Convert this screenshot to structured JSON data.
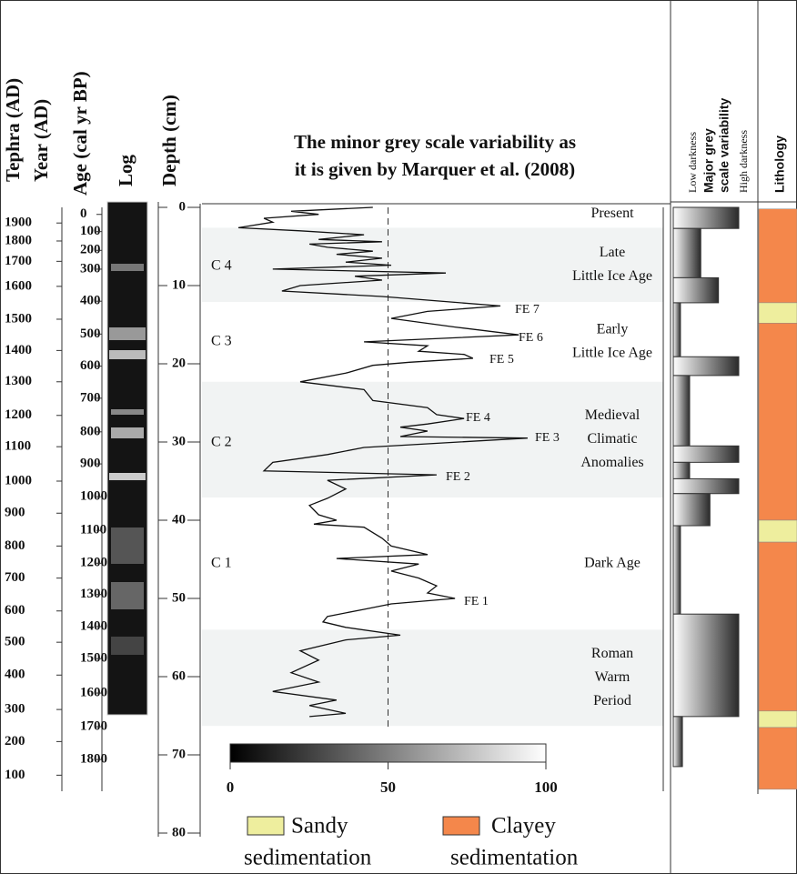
{
  "chart_data": {
    "type": "line",
    "title": [
      "The minor grey scale variability as",
      "it is given by Marquer et al. (2008)"
    ],
    "y_label": "Depth (cm)",
    "ylim": [
      0,
      80
    ],
    "yticks": [
      0,
      10,
      20,
      30,
      40,
      50,
      60,
      70,
      80
    ],
    "xlim": [
      0,
      100
    ],
    "xticks": [
      0,
      50,
      100
    ],
    "colorbar": [
      "#000000",
      "#ffffff"
    ],
    "reference_line": 50,
    "series": [
      {
        "color": "#111111",
        "x": [
          45.2,
          19.3,
          28.0,
          10.7,
          13.5,
          2.6,
          22.2,
          42.4,
          28.0,
          48.1,
          25.1,
          30.8,
          45.2,
          33.7,
          48.1,
          36.6,
          51.0,
          13.5,
          68.3,
          39.5,
          48.1,
          22.2,
          16.4,
          48.1,
          85.6,
          62.5,
          51.0,
          71.2,
          91.4,
          42.4,
          62.5,
          59.7,
          74.1,
          76.9,
          56.8,
          45.2,
          36.6,
          22.2,
          42.4,
          45.2,
          62.5,
          65.4,
          74.1,
          62.5,
          53.9,
          62.5,
          53.9,
          94.2,
          42.4,
          30.8,
          13.5,
          10.7,
          65.4,
          30.8,
          36.6,
          30.8,
          25.1,
          28.0,
          33.7,
          26.5,
          42.4,
          48.1,
          51.0,
          62.5,
          33.7,
          59.7,
          51.0,
          59.7,
          65.4,
          62.5,
          71.2,
          51.0,
          42.4,
          30.8,
          29.4,
          36.6,
          53.9,
          36.6,
          22.2,
          28.0,
          19.3,
          28.0,
          13.5,
          33.7,
          25.1,
          36.6,
          25.1
        ],
        "values": [
          0,
          0.5,
          0.9,
          1.4,
          1.9,
          2.6,
          3.0,
          3.5,
          4.1,
          4.4,
          4.7,
          5.1,
          5.6,
          6.0,
          6.5,
          7.0,
          7.4,
          7.9,
          8.4,
          8.8,
          9.3,
          10.0,
          10.7,
          11.4,
          12.6,
          13.3,
          14.2,
          15.3,
          16.3,
          17.2,
          17.7,
          18.4,
          18.8,
          19.3,
          19.8,
          20.2,
          21.2,
          22.3,
          23.3,
          24.7,
          25.6,
          26.5,
          27.0,
          27.7,
          28.1,
          28.6,
          29.3,
          29.5,
          30.7,
          31.6,
          32.6,
          33.7,
          34.2,
          34.9,
          36.0,
          37.2,
          38.1,
          39.3,
          40.0,
          40.5,
          40.9,
          42.3,
          43.3,
          44.4,
          44.9,
          45.6,
          46.5,
          47.4,
          48.4,
          49.3,
          50.0,
          50.7,
          51.4,
          52.3,
          53.0,
          53.7,
          54.7,
          55.3,
          56.7,
          57.9,
          59.5,
          60.7,
          61.9,
          63.0,
          63.7,
          64.7,
          65.1
        ]
      }
    ],
    "periods": [
      {
        "lines": [
          "Present"
        ],
        "top": 0,
        "bottom": 2.6,
        "shaded": false
      },
      {
        "lines": [
          "Late",
          "Little Ice Age"
        ],
        "top": 2.6,
        "bottom": 12.1,
        "shaded": true
      },
      {
        "lines": [
          "Early",
          "Little Ice Age"
        ],
        "top": 12.1,
        "bottom": 22.3,
        "shaded": false
      },
      {
        "lines": [
          "Medieval",
          "Climatic",
          "Anomalies"
        ],
        "top": 22.3,
        "bottom": 37.1,
        "shaded": true
      },
      {
        "lines": [
          "Dark Age"
        ],
        "top": 37.1,
        "bottom": 54.0,
        "shaded": false
      },
      {
        "lines": [
          "Roman",
          "Warm",
          "Period"
        ],
        "top": 54.0,
        "bottom": 66.3,
        "shaded": true
      }
    ],
    "zones": [
      "C 4",
      "C 3",
      "C 2",
      "C 1"
    ],
    "annotations": [
      "FE 7",
      "FE 6",
      "FE 5",
      "FE 4",
      "FE 3",
      "FE 2",
      "FE 1"
    ]
  },
  "tephra_axis": {
    "title": "Tephra (AD)"
  },
  "year_axis": {
    "title": "Year (AD)",
    "ticks": [
      1900,
      1800,
      1700,
      1600,
      1500,
      1400,
      1300,
      1200,
      1100,
      1000,
      900,
      800,
      700,
      600,
      500,
      400,
      300,
      200,
      100
    ],
    "depths": [
      2.0,
      4.3,
      6.9,
      10.1,
      14.3,
      18.3,
      22.3,
      26.6,
      30.6,
      35.0,
      39.1,
      43.3,
      47.4,
      51.6,
      55.6,
      59.8,
      64.2,
      68.3,
      72.6
    ]
  },
  "age_axis": {
    "title": "Age (cal yr BP)",
    "ticks": [
      0,
      100,
      200,
      300,
      400,
      500,
      600,
      700,
      800,
      900,
      1000,
      1100,
      1200,
      1300,
      1400,
      1500,
      1600,
      1700,
      1800
    ],
    "depths": [
      0.9,
      3.1,
      5.5,
      7.9,
      12.0,
      16.2,
      20.3,
      24.4,
      28.7,
      32.8,
      37.0,
      41.3,
      45.5,
      49.5,
      53.6,
      57.7,
      62.1,
      66.4,
      70.6
    ]
  },
  "log_column": {
    "title": "Log"
  },
  "grey_scale_column": {
    "title": [
      "Major grey",
      "scale variability"
    ],
    "low": "Low darkness",
    "high": "High darkness",
    "segments": [
      {
        "top": 0,
        "bottom": 2.7,
        "darkness": 1
      },
      {
        "top": 2.7,
        "bottom": 9.0,
        "darkness": 0.42
      },
      {
        "top": 9.0,
        "bottom": 12.2,
        "darkness": 0.69
      },
      {
        "top": 12.2,
        "bottom": 19.1,
        "darkness": 0.11
      },
      {
        "top": 19.1,
        "bottom": 21.5,
        "darkness": 1
      },
      {
        "top": 21.5,
        "bottom": 30.5,
        "darkness": 0.25
      },
      {
        "top": 30.5,
        "bottom": 32.6,
        "darkness": 1
      },
      {
        "top": 32.6,
        "bottom": 34.7,
        "darkness": 0.25
      },
      {
        "top": 34.7,
        "bottom": 36.6,
        "darkness": 1
      },
      {
        "top": 36.6,
        "bottom": 40.7,
        "darkness": 0.56
      },
      {
        "top": 40.7,
        "bottom": 52.0,
        "darkness": 0.11
      },
      {
        "top": 52.0,
        "bottom": 65.1,
        "darkness": 1
      },
      {
        "top": 65.1,
        "bottom": 71.5,
        "darkness": 0.14
      }
    ]
  },
  "lithology": {
    "title": "Lithology",
    "segments": [
      {
        "top": 0.2,
        "bottom": 12.2,
        "color": "#f4874b"
      },
      {
        "top": 12.2,
        "bottom": 14.8,
        "color": "#eeee9e"
      },
      {
        "top": 14.8,
        "bottom": 40.0,
        "color": "#f4874b"
      },
      {
        "top": 40.0,
        "bottom": 42.8,
        "color": "#eeee9e"
      },
      {
        "top": 42.8,
        "bottom": 64.4,
        "color": "#f4874b"
      },
      {
        "top": 64.4,
        "bottom": 66.5,
        "color": "#eeee9e"
      },
      {
        "top": 66.5,
        "bottom": 74.4,
        "color": "#f4874b"
      }
    ],
    "legend": [
      {
        "lines": [
          "Sandy",
          "sedimentation"
        ],
        "color": "#eeee9e"
      },
      {
        "lines": [
          "Clayey",
          "sedimentation"
        ],
        "color": "#f4874b"
      }
    ]
  }
}
